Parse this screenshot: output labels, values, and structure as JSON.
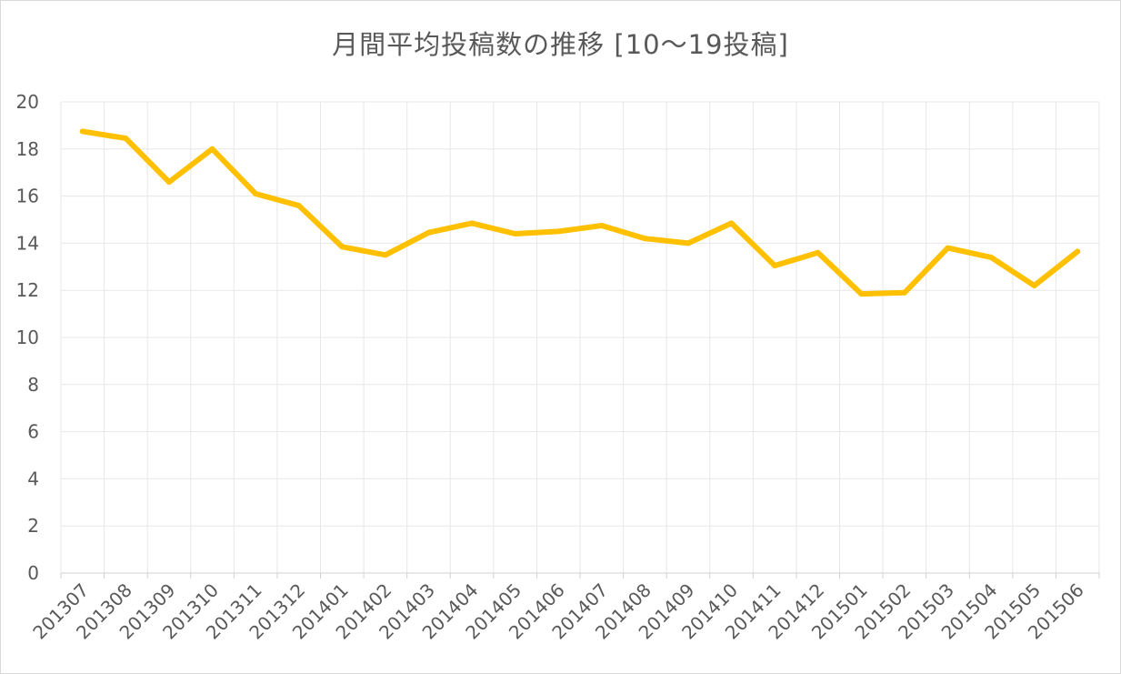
{
  "chart_data": {
    "type": "line",
    "title": "月間平均投稿数の推移 [10～19投稿]",
    "xlabel": "",
    "ylabel": "",
    "categories": [
      "201307",
      "201308",
      "201309",
      "201310",
      "201311",
      "201312",
      "201401",
      "201402",
      "201403",
      "201404",
      "201405",
      "201406",
      "201407",
      "201408",
      "201409",
      "201410",
      "201411",
      "201412",
      "201501",
      "201502",
      "201503",
      "201504",
      "201505",
      "201506"
    ],
    "series": [
      {
        "values": [
          18.75,
          18.45,
          16.6,
          18.0,
          16.1,
          15.6,
          13.85,
          13.5,
          14.45,
          14.85,
          14.4,
          14.5,
          14.75,
          14.2,
          14.0,
          14.85,
          13.05,
          13.6,
          11.85,
          11.9,
          13.8,
          13.4,
          12.2,
          13.65
        ],
        "color": "#FFC000"
      }
    ],
    "ylim": [
      0,
      20
    ],
    "yticks": [
      0,
      2,
      4,
      6,
      8,
      10,
      12,
      14,
      16,
      18,
      20
    ],
    "grid": true,
    "legend": "none"
  }
}
